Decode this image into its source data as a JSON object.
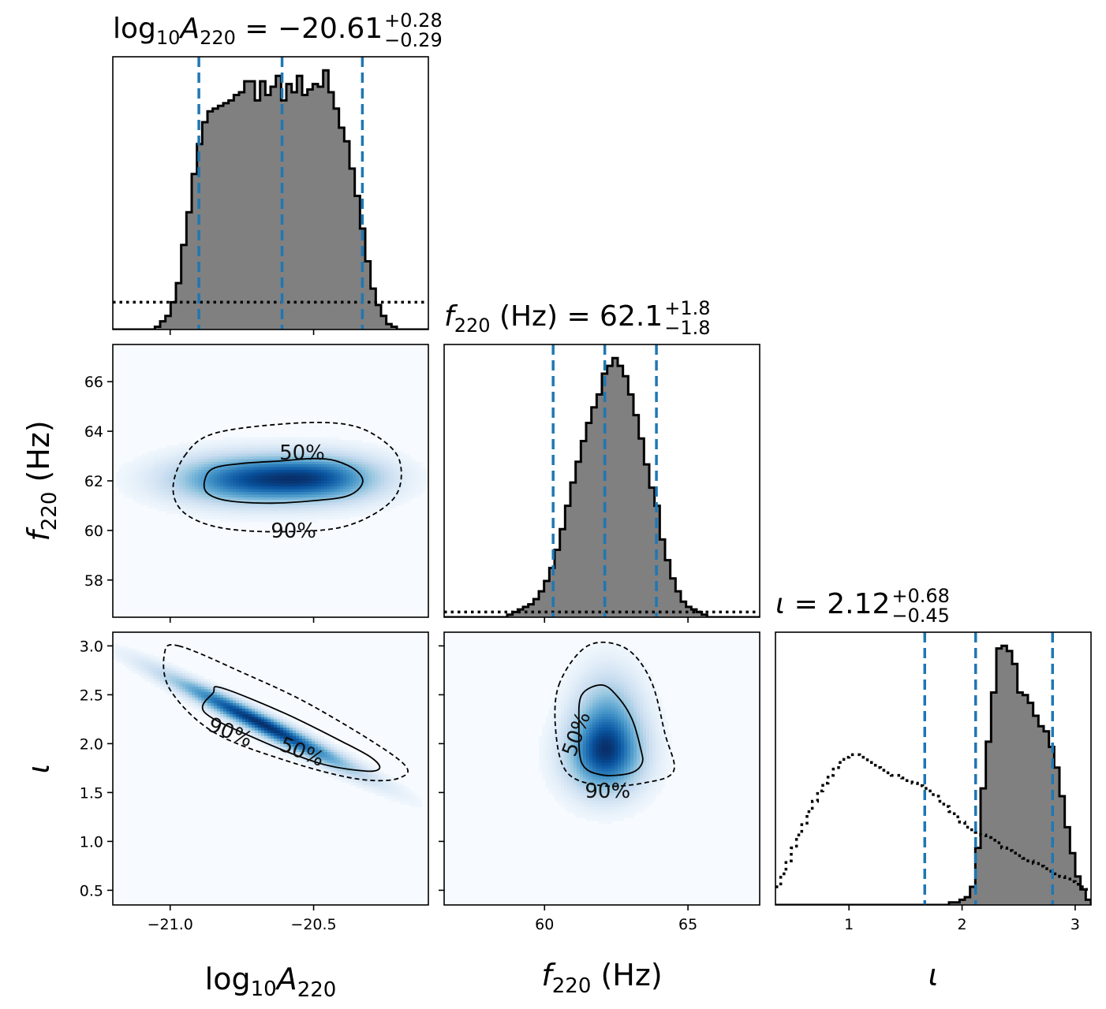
{
  "chart_data": {
    "type": "corner",
    "parameters": [
      {
        "key": "logA",
        "ticks": [
          -21.0,
          -20.5
        ],
        "tick_labels": [
          "−21.0",
          "−20.5"
        ],
        "range": [
          -21.2,
          -20.1
        ]
      },
      {
        "key": "f",
        "ticks": [
          60,
          65
        ],
        "tick_labels": [
          "60",
          "65"
        ],
        "ticks_y": [
          58,
          60,
          62,
          64,
          66
        ],
        "tick_labels_y": [
          "58",
          "60",
          "62",
          "64",
          "66"
        ],
        "range": [
          56.5,
          67.5
        ]
      },
      {
        "key": "iota",
        "ticks": [
          1,
          2,
          3
        ],
        "tick_labels": [
          "1",
          "2",
          "3"
        ],
        "ticks_y": [
          0.5,
          1.0,
          1.5,
          2.0,
          2.5,
          3.0
        ],
        "tick_labels_y": [
          "0.5",
          "1.0",
          "1.5",
          "2.0",
          "2.5",
          "3.0"
        ],
        "range": [
          0.35,
          3.14
        ]
      }
    ],
    "titles": {
      "logA": {
        "lhs": "log",
        "sub1": "10",
        "var": "A",
        "sub2": "220",
        "eq": " = −20.61",
        "up": "+0.28",
        "lo": "−0.29"
      },
      "f": {
        "var": "f",
        "sub": "220",
        "unit": " (Hz)",
        "eq": " = 62.1",
        "up": "+1.8",
        "lo": "−1.8"
      },
      "iota": {
        "var": "ι",
        "eq": " = 2.12",
        "up": "+0.68",
        "lo": "−0.45"
      }
    },
    "axis_labels": {
      "logA": {
        "lhs": "log",
        "sub1": "10",
        "var": "A",
        "sub2": "220"
      },
      "f": {
        "var": "f",
        "sub": "220",
        "unit": " (Hz)"
      },
      "iota": {
        "var": "ι"
      }
    },
    "quantiles": {
      "logA": [
        -20.9,
        -20.61,
        -20.33
      ],
      "f": [
        60.3,
        62.1,
        63.9
      ],
      "iota": [
        1.67,
        2.12,
        2.8
      ]
    },
    "histograms": {
      "logA": {
        "bins": [
          -21.2,
          -20.1
        ],
        "posterior": [
          0.0,
          0.0,
          0.0,
          0.0,
          0.0,
          0.0,
          0.0,
          0.0,
          0.01,
          0.03,
          0.05,
          0.1,
          0.17,
          0.31,
          0.43,
          0.57,
          0.68,
          0.76,
          0.8,
          0.81,
          0.82,
          0.83,
          0.84,
          0.86,
          0.87,
          0.91,
          0.91,
          0.84,
          0.91,
          0.86,
          0.89,
          0.93,
          0.84,
          0.9,
          0.87,
          0.93,
          0.86,
          0.88,
          0.9,
          0.89,
          0.95,
          0.87,
          0.81,
          0.74,
          0.69,
          0.59,
          0.49,
          0.37,
          0.25,
          0.15,
          0.09,
          0.05,
          0.02,
          0.01,
          0.0,
          0.0,
          0.0,
          0.0,
          0.0,
          0.0
        ],
        "prior": [
          0.1,
          0.1,
          0.1,
          0.1,
          0.1,
          0.1,
          0.1,
          0.1,
          0.1,
          0.1,
          0.1,
          0.1,
          0.1,
          0.1,
          0.1,
          0.1,
          0.1,
          0.1,
          0.1,
          0.1,
          0.1,
          0.1,
          0.1,
          0.1,
          0.1,
          0.1,
          0.1,
          0.1,
          0.1,
          0.1,
          0.1,
          0.1,
          0.1,
          0.1,
          0.1,
          0.1,
          0.1,
          0.1,
          0.1,
          0.1,
          0.1,
          0.1,
          0.1,
          0.1,
          0.1,
          0.1,
          0.1,
          0.1,
          0.1,
          0.1,
          0.1,
          0.1,
          0.1,
          0.1,
          0.1,
          0.1,
          0.1,
          0.1,
          0.1,
          0.1
        ]
      },
      "f": {
        "bins": [
          56.5,
          67.5
        ],
        "posterior": [
          0.0,
          0.0,
          0.0,
          0.0,
          0.0,
          0.0,
          0.0,
          0.0,
          0.0,
          0.0,
          0.0,
          0.0,
          0.01,
          0.02,
          0.03,
          0.04,
          0.05,
          0.07,
          0.1,
          0.14,
          0.19,
          0.26,
          0.34,
          0.43,
          0.52,
          0.6,
          0.68,
          0.75,
          0.81,
          0.86,
          0.94,
          0.97,
          1.0,
          0.97,
          0.93,
          0.86,
          0.78,
          0.69,
          0.59,
          0.5,
          0.43,
          0.3,
          0.22,
          0.15,
          0.1,
          0.06,
          0.04,
          0.03,
          0.02,
          0.01,
          0.0,
          0.0,
          0.0,
          0.0,
          0.0,
          0.0,
          0.0,
          0.0,
          0.0,
          0.0
        ],
        "prior": [
          0.02,
          0.02,
          0.02,
          0.02,
          0.02,
          0.02,
          0.02,
          0.02,
          0.02,
          0.02,
          0.02,
          0.02,
          0.02,
          0.02,
          0.02,
          0.02,
          0.02,
          0.02,
          0.02,
          0.02,
          0.02,
          0.02,
          0.02,
          0.02,
          0.02,
          0.02,
          0.02,
          0.02,
          0.02,
          0.02,
          0.02,
          0.02,
          0.02,
          0.02,
          0.02,
          0.02,
          0.02,
          0.02,
          0.02,
          0.02,
          0.02,
          0.02,
          0.02,
          0.02,
          0.02,
          0.02,
          0.02,
          0.02,
          0.02,
          0.02,
          0.02,
          0.02,
          0.02,
          0.02,
          0.02,
          0.02,
          0.02,
          0.02,
          0.02,
          0.02
        ]
      },
      "iota": {
        "bins": [
          0.35,
          3.14
        ],
        "posterior": [
          0.0,
          0.0,
          0.0,
          0.0,
          0.0,
          0.0,
          0.0,
          0.0,
          0.0,
          0.0,
          0.0,
          0.0,
          0.0,
          0.0,
          0.0,
          0.0,
          0.0,
          0.0,
          0.0,
          0.0,
          0.0,
          0.0,
          0.0,
          0.0,
          0.0,
          0.0,
          0.0,
          0.0,
          0.0,
          0.0,
          0.0,
          0.0,
          0.0,
          0.01,
          0.01,
          0.02,
          0.03,
          0.07,
          0.22,
          0.45,
          0.63,
          0.82,
          0.99,
          1.0,
          0.98,
          0.93,
          0.82,
          0.81,
          0.78,
          0.73,
          0.69,
          0.67,
          0.61,
          0.53,
          0.42,
          0.3,
          0.2,
          0.11,
          0.06,
          0.02
        ],
        "prior": [
          0.07,
          0.12,
          0.17,
          0.22,
          0.27,
          0.31,
          0.36,
          0.4,
          0.44,
          0.47,
          0.5,
          0.53,
          0.55,
          0.57,
          0.58,
          0.58,
          0.57,
          0.56,
          0.55,
          0.53,
          0.52,
          0.51,
          0.5,
          0.5,
          0.49,
          0.48,
          0.47,
          0.46,
          0.45,
          0.44,
          0.42,
          0.4,
          0.38,
          0.36,
          0.34,
          0.32,
          0.3,
          0.29,
          0.28,
          0.27,
          0.26,
          0.25,
          0.24,
          0.22,
          0.21,
          0.2,
          0.19,
          0.18,
          0.17,
          0.16,
          0.15,
          0.14,
          0.13,
          0.12,
          0.11,
          0.1,
          0.09,
          0.08,
          0.07,
          0.06
        ]
      }
    },
    "density_2d": {
      "logA_f": {
        "blobs": [
          {
            "x": -20.73,
            "y": 62.05,
            "sx": 0.17,
            "sy": 0.62,
            "rho": 0.0,
            "w": 1.0
          },
          {
            "x": -20.47,
            "y": 62.1,
            "sx": 0.14,
            "sy": 0.6,
            "rho": 0.0,
            "w": 0.85
          }
        ],
        "contour_50": [
          [
            -20.85,
            62.5
          ],
          [
            -20.75,
            62.7
          ],
          [
            -20.62,
            62.8
          ],
          [
            -20.5,
            62.9
          ],
          [
            -20.42,
            62.8
          ],
          [
            -20.35,
            62.4
          ],
          [
            -20.33,
            61.9
          ],
          [
            -20.38,
            61.4
          ],
          [
            -20.5,
            61.2
          ],
          [
            -20.65,
            61.1
          ],
          [
            -20.8,
            61.2
          ],
          [
            -20.87,
            61.5
          ],
          [
            -20.88,
            62.0
          ]
        ],
        "contour_90": [
          [
            -20.95,
            63.0
          ],
          [
            -20.85,
            63.9
          ],
          [
            -20.6,
            64.3
          ],
          [
            -20.4,
            64.3
          ],
          [
            -20.28,
            63.8
          ],
          [
            -20.2,
            62.8
          ],
          [
            -20.22,
            61.3
          ],
          [
            -20.38,
            60.2
          ],
          [
            -20.6,
            59.95
          ],
          [
            -20.82,
            60.1
          ],
          [
            -20.95,
            60.7
          ],
          [
            -20.99,
            61.7
          ]
        ],
        "labels": [
          {
            "text": "50%",
            "x": -20.54,
            "y": 63.15
          },
          {
            "text": "90%",
            "x": -20.57,
            "y": 60.0
          }
        ]
      },
      "logA_iota": {
        "blobs": [
          {
            "x": -20.68,
            "y": 2.2,
            "sx": 0.2,
            "sy": 0.3,
            "rho": -0.97,
            "w": 1.0
          }
        ],
        "contour_50": [
          [
            -20.82,
            2.57
          ],
          [
            -20.6,
            2.31
          ],
          [
            -20.4,
            2.02
          ],
          [
            -20.3,
            1.86
          ],
          [
            -20.27,
            1.75
          ],
          [
            -20.32,
            1.72
          ],
          [
            -20.48,
            1.8
          ],
          [
            -20.7,
            2.05
          ],
          [
            -20.88,
            2.32
          ],
          [
            -20.85,
            2.52
          ]
        ],
        "contour_90": [
          [
            -20.97,
            3.0
          ],
          [
            -20.75,
            2.73
          ],
          [
            -20.5,
            2.38
          ],
          [
            -20.2,
            1.83
          ],
          [
            -20.2,
            1.65
          ],
          [
            -20.35,
            1.64
          ],
          [
            -20.6,
            1.83
          ],
          [
            -20.85,
            2.12
          ],
          [
            -21.0,
            2.55
          ],
          [
            -21.02,
            2.92
          ]
        ],
        "labels": [
          {
            "text": "90%",
            "x": -20.79,
            "y": 2.12,
            "rot": 22
          },
          {
            "text": "50%",
            "x": -20.54,
            "y": 1.92,
            "rot": 22
          }
        ]
      },
      "f_iota": {
        "blobs": [
          {
            "x": 62.1,
            "y": 1.88,
            "sx": 0.85,
            "sy": 0.25,
            "rho": 0.0,
            "w": 1.0
          },
          {
            "x": 62.2,
            "y": 2.25,
            "sx": 0.75,
            "sy": 0.32,
            "rho": 0.0,
            "w": 0.55
          }
        ],
        "contour_50": [
          [
            61.3,
            2.5
          ],
          [
            62.0,
            2.6
          ],
          [
            62.55,
            2.48
          ],
          [
            63.05,
            2.25
          ],
          [
            63.35,
            1.95
          ],
          [
            63.4,
            1.8
          ],
          [
            63.0,
            1.7
          ],
          [
            62.0,
            1.68
          ],
          [
            61.3,
            1.8
          ],
          [
            61.2,
            2.2
          ]
        ],
        "contour_90": [
          [
            60.5,
            2.6
          ],
          [
            61.5,
            3.0
          ],
          [
            62.8,
            2.98
          ],
          [
            63.7,
            2.65
          ],
          [
            64.2,
            2.1
          ],
          [
            64.5,
            1.72
          ],
          [
            63.5,
            1.6
          ],
          [
            62.0,
            1.57
          ],
          [
            60.8,
            1.7
          ],
          [
            60.4,
            2.1
          ]
        ],
        "labels": [
          {
            "text": "50%",
            "x": 61.1,
            "y": 2.1,
            "rot": -70
          },
          {
            "text": "90%",
            "x": 62.2,
            "y": 1.52,
            "rot": 0
          }
        ]
      }
    },
    "colors": {
      "hist_fill": "#808080",
      "hist_edge": "#000000",
      "quantile_line": "#1f77b4",
      "cmap_low": "#f7fbff",
      "cmap_high": "#08306b"
    }
  }
}
